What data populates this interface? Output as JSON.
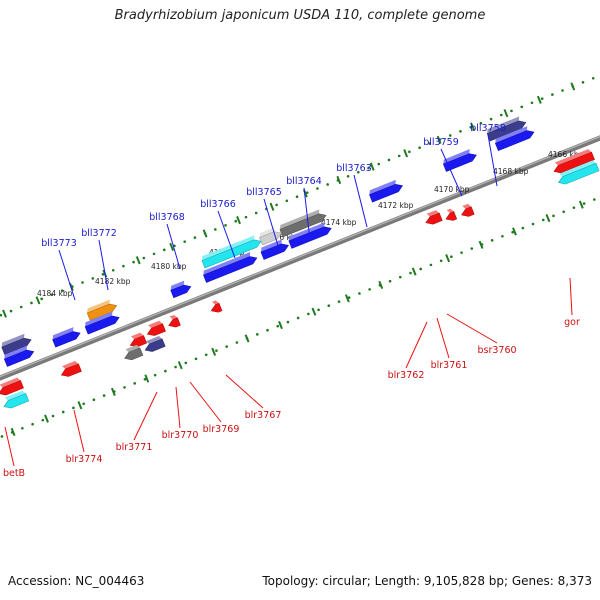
{
  "title": "Bradyrhizobium japonicum USDA 110, complete genome",
  "footer": {
    "accession": "Accession: NC_004463",
    "summary": "Topology: circular; Length: 9,105,828 bp; Genes: 8,373"
  },
  "kbp_labels": [
    "4166 kbp",
    "4168 kbp",
    "4170 kbp",
    "4172 kbp",
    "4174 kbp",
    "4176 kbp",
    "4178 kbp",
    "4180 kbp",
    "4182 kbp",
    "4184 kbp"
  ],
  "top_gene_labels": [
    "bll3758",
    "bll3759",
    "bll3763",
    "bll3764",
    "bll3765",
    "bll3766",
    "bll3768",
    "bll3772",
    "bll3773"
  ],
  "bottom_gene_labels": [
    "gor",
    "bsr3760",
    "blr3761",
    "blr3762",
    "blr3767",
    "blr3769",
    "blr3770",
    "blr3771",
    "blr3774",
    "betB"
  ],
  "colors": {
    "backbone": "#7a7a7a",
    "tick": "#1f7a1f",
    "blue": "#1a1af0",
    "navy": "#3c3c8c",
    "red": "#ee1111",
    "cyan": "#22e5ee",
    "gray": "#6e6e6e",
    "orange": "#f09010"
  }
}
